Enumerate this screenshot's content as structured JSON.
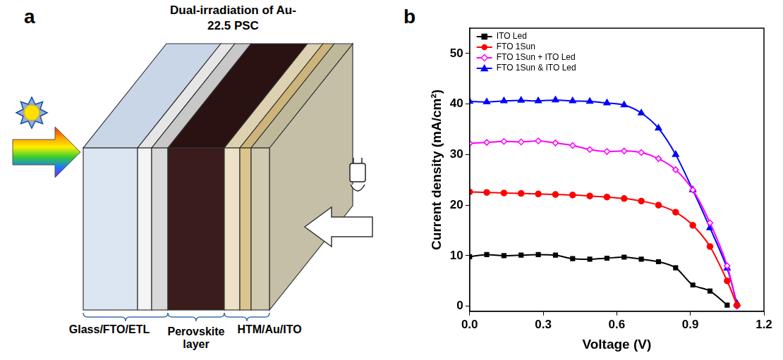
{
  "panel_labels": [
    "a",
    "b"
  ],
  "diagram": {
    "title": "Dual-irradiation of Au-22.5 PSC",
    "layers": [
      "Glass/FTO/ETL",
      "Perovskite layer",
      "HTM/Au/ITO"
    ]
  },
  "chart_data": {
    "type": "line",
    "x_label": "Voltage (V)",
    "y_label": "Current density (mA/cm²)",
    "x": [
      0,
      0.07,
      0.14,
      0.21,
      0.28,
      0.35,
      0.42,
      0.49,
      0.56,
      0.63,
      0.7,
      0.77,
      0.84,
      0.91,
      0.98,
      1.05,
      1.09
    ],
    "series": [
      {
        "name": "ITO Led",
        "color": "#000000",
        "marker": "square",
        "values": [
          9.8,
          10.2,
          10.0,
          10.1,
          10.2,
          10.1,
          9.4,
          9.3,
          9.5,
          9.7,
          9.3,
          8.8,
          7.6,
          4.2,
          3.0,
          0.2,
          null
        ]
      },
      {
        "name": "FTO 1Sun",
        "color": "#ff0000",
        "marker": "circle",
        "values": [
          22.6,
          22.5,
          22.4,
          22.3,
          22.2,
          22.1,
          22.0,
          21.8,
          21.6,
          21.3,
          20.8,
          20.0,
          18.6,
          16.0,
          11.8,
          5.0,
          0.2
        ]
      },
      {
        "name": "FTO 1Sun + ITO Led",
        "color": "#ff00ff",
        "marker": "open_diamond",
        "values": [
          32.2,
          32.4,
          32.6,
          32.5,
          32.7,
          32.3,
          31.8,
          31.0,
          30.6,
          30.7,
          30.4,
          29.2,
          27.0,
          23.0,
          16.5,
          8.0,
          0.0
        ]
      },
      {
        "name": "FTO 1Sun & ITO Led",
        "color": "#0000ff",
        "marker": "triangle",
        "values": [
          40.5,
          40.4,
          40.6,
          40.7,
          40.6,
          40.8,
          40.6,
          40.5,
          40.2,
          39.8,
          38.2,
          35.2,
          30.0,
          23.0,
          15.5,
          7.5,
          0.5
        ]
      }
    ],
    "xlim": [
      0,
      1.2
    ],
    "xticks": [
      {
        "value": 0,
        "label": "0.0"
      },
      0.3,
      0.6,
      0.9,
      1.2
    ],
    "ylim": [
      -1,
      55
    ],
    "yticks": [
      0,
      10,
      20,
      30,
      40,
      50
    ],
    "grid": false,
    "legend": "upper left"
  }
}
